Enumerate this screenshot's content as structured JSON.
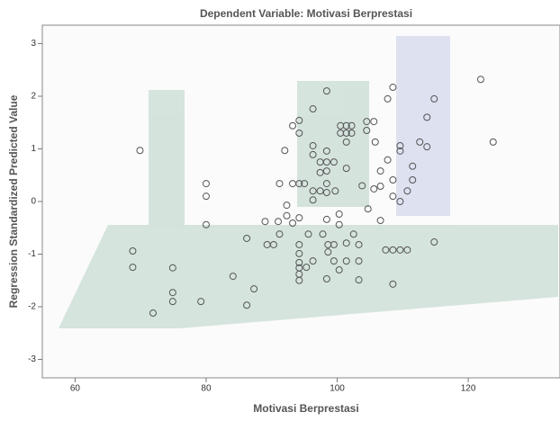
{
  "chart_data": {
    "type": "scatter",
    "title": "Dependent Variable: Motivasi Berprestasi",
    "x_label": "Motivasi Berprestasi",
    "y_label": "Regression Standardized Predicted Value",
    "color": "#555555",
    "xlim": [
      55,
      134
    ],
    "ylim": [
      -3.35,
      3.35
    ],
    "xticks": [
      60,
      80,
      100,
      120
    ],
    "yticks": [
      -3,
      -2,
      -1,
      0,
      1,
      2,
      3
    ],
    "x": [
      69.9,
      68.8,
      68.8,
      71.9,
      74.9,
      74.9,
      74.9,
      79.2,
      80,
      80,
      80,
      84.1,
      86.2,
      86.2,
      87.3,
      89,
      91,
      89.3,
      90.3,
      91.2,
      91.2,
      92,
      93.2,
      94.2,
      94.2,
      93.2,
      94.2,
      95,
      92.3,
      92.3,
      93.2,
      94.2,
      94.2,
      94.2,
      94.2,
      94.2,
      94.2,
      94.2,
      96.3,
      96.3,
      96.3,
      96.3,
      96.3,
      95.6,
      95.3,
      96.3,
      97.8,
      97.4,
      97.4,
      97.4,
      98.4,
      98.4,
      98.4,
      98.4,
      98.4,
      98.4,
      98.4,
      98.6,
      98.6,
      98.4,
      99.5,
      99.7,
      100.3,
      100.3,
      100.5,
      100.5,
      101.4,
      101.4,
      102.2,
      102.2,
      101.4,
      101.4,
      102.5,
      101.4,
      101.4,
      100.3,
      99.5,
      99.5,
      103.3,
      103.3,
      103.3,
      104.7,
      103.8,
      104.5,
      105.6,
      104.5,
      105.8,
      105.6,
      106.6,
      106.6,
      106.6,
      107.4,
      107.7,
      108.5,
      107.7,
      108.5,
      108.5,
      108.5,
      108.5,
      109.6,
      109.6,
      109.6,
      109.6,
      110.7,
      110.7,
      111.5,
      111.5,
      112.6,
      113.7,
      114.8,
      113.7,
      114.8,
      121.9,
      123.8
    ],
    "y": [
      0.97,
      -0.94,
      -1.25,
      -2.12,
      -1.26,
      -1.73,
      -1.9,
      -1.9,
      0.34,
      0.1,
      -0.44,
      -1.42,
      -0.7,
      -1.97,
      -1.66,
      -0.38,
      -0.38,
      -0.82,
      -0.82,
      -0.62,
      0.34,
      0.97,
      1.44,
      1.54,
      1.3,
      0.34,
      0.34,
      0.34,
      -0.07,
      -0.27,
      -0.41,
      -0.31,
      -0.82,
      -0.99,
      -1.16,
      -1.26,
      -1.38,
      -1.5,
      1.76,
      1.06,
      0.89,
      0.2,
      0.03,
      -0.62,
      -1.25,
      -1.13,
      -0.62,
      0.75,
      0.55,
      0.2,
      2.1,
      0.96,
      0.75,
      0.58,
      0.34,
      0.17,
      -0.34,
      -0.82,
      -0.96,
      -1.47,
      0.75,
      0.2,
      -0.24,
      -0.44,
      1.44,
      1.3,
      1.44,
      1.3,
      1.44,
      1.3,
      1.13,
      0.63,
      -0.62,
      -0.79,
      -1.13,
      -1.3,
      -0.82,
      -1.13,
      -0.82,
      -1.13,
      -1.49,
      -0.14,
      0.3,
      1.52,
      1.52,
      1.35,
      1.13,
      0.24,
      0.29,
      0.58,
      -0.36,
      -0.92,
      1.95,
      2.17,
      0.79,
      0.41,
      0.1,
      -0.92,
      -1.57,
      1.06,
      0.96,
      0,
      -0.92,
      -0.92,
      0.2,
      0.67,
      0.41,
      1.13,
      1.6,
      1.95,
      1.04,
      -0.77,
      2.32,
      1.13
    ]
  }
}
